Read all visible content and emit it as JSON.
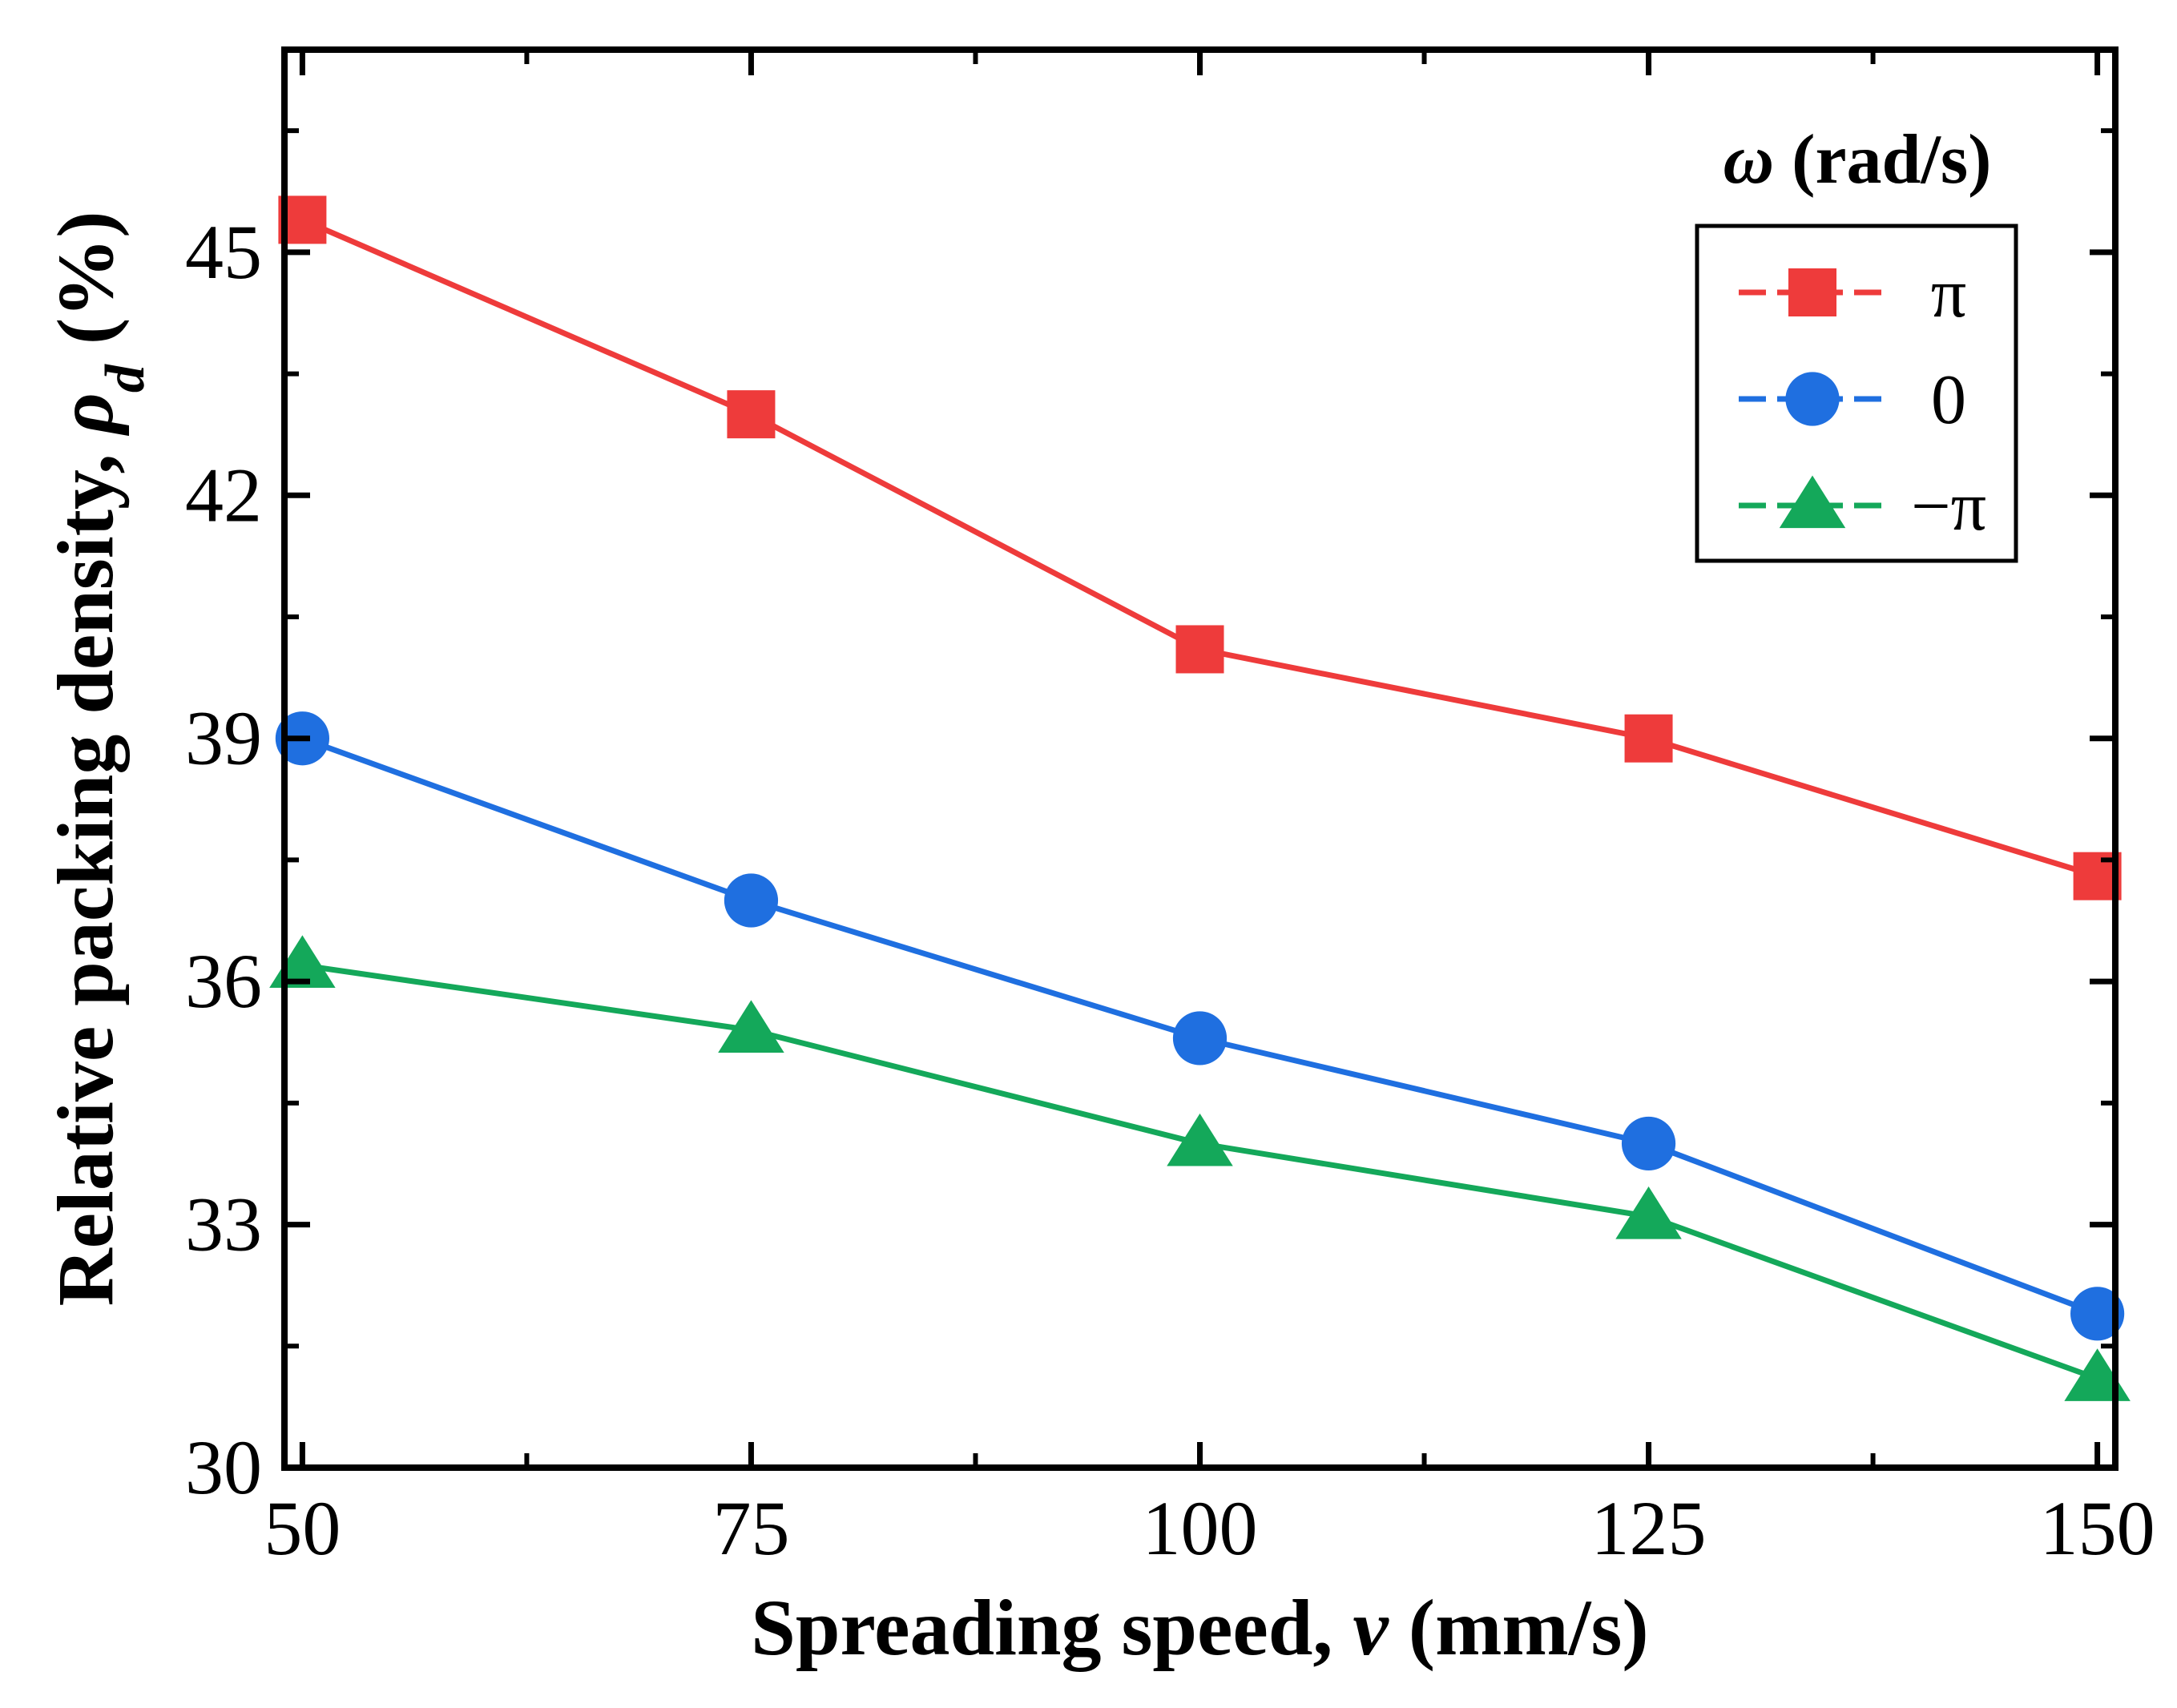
{
  "chart_data": {
    "type": "line",
    "xlabel": {
      "prefix": "Spreading speed, ",
      "symbol": "v",
      "suffix": " (mm/s)"
    },
    "ylabel": {
      "prefix": "Relative packing density, ",
      "symbol": "ρ",
      "subscript": "d",
      "suffix": " (%)"
    },
    "xlim": [
      49,
      151
    ],
    "ylim": [
      30,
      47.5
    ],
    "x_ticks": [
      50,
      75,
      100,
      125,
      150
    ],
    "x_tick_labels": [
      "50",
      "75",
      "100",
      "125",
      "150"
    ],
    "y_ticks": [
      30,
      33,
      36,
      39,
      42,
      45
    ],
    "y_tick_labels": [
      "30",
      "33",
      "36",
      "39",
      "42",
      "45"
    ],
    "x": [
      50,
      75,
      100,
      125,
      150
    ],
    "legend": {
      "title_symbol": "ω",
      "title_unit": " (rad/s)",
      "position": "top-right"
    },
    "grid": false,
    "series": [
      {
        "name": "π",
        "marker": "square",
        "color": "#ee3b3b",
        "values": [
          45.4,
          43.0,
          40.1,
          39.0,
          37.3
        ]
      },
      {
        "name": "0",
        "marker": "circle",
        "color": "#1f6fe0",
        "values": [
          39.0,
          37.0,
          35.3,
          34.0,
          31.9
        ]
      },
      {
        "name": "−π",
        "marker": "triangle",
        "color": "#14a85a",
        "values": [
          36.2,
          35.4,
          34.0,
          33.1,
          31.1
        ]
      }
    ]
  }
}
